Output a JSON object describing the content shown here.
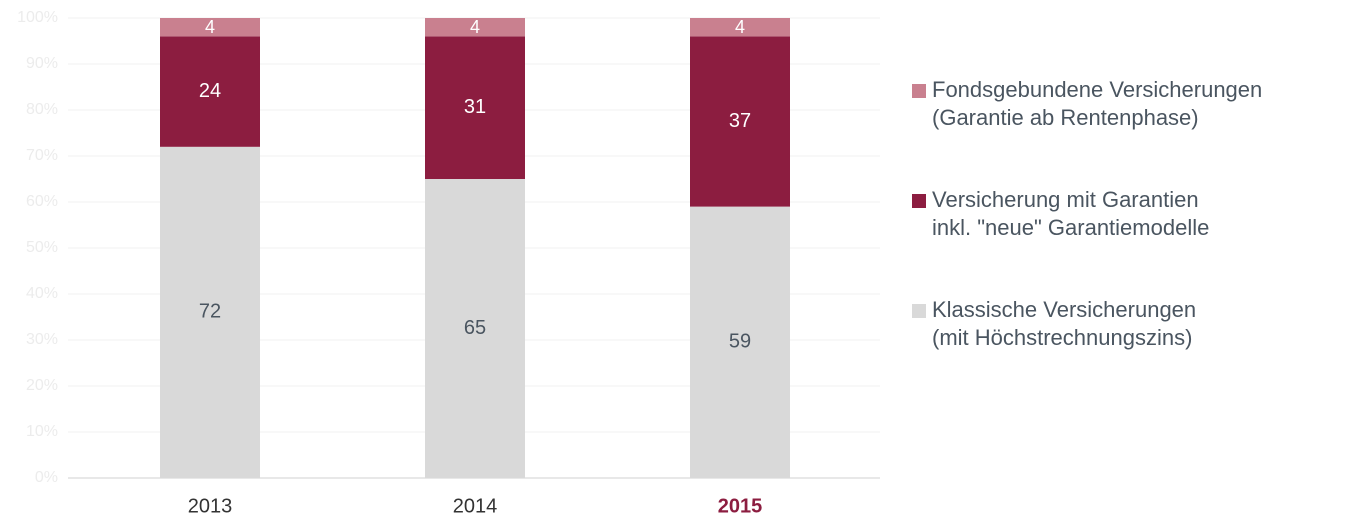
{
  "chart_data": {
    "type": "stacked_bar",
    "categories": [
      "2013",
      "2014",
      "2015"
    ],
    "highlight_index": 2,
    "series": [
      {
        "name": "Klassische Versicherungen\n(mit Höchstrechnungszins)",
        "color": "#d9d9d9",
        "values": [
          72,
          65,
          59
        ]
      },
      {
        "name": "Versicherung mit Garantien\ninkl. \"neue\" Garantiemodelle",
        "color": "#8c1d40",
        "values": [
          24,
          31,
          37
        ]
      },
      {
        "name": "Fondsgebundene Versicherungen\n(Garantie ab Rentenphase)",
        "color": "#c9808f",
        "values": [
          4,
          4,
          4
        ]
      }
    ],
    "ylim": [
      0,
      100
    ],
    "yticks": [
      {
        "value": 0,
        "label": "0%"
      },
      {
        "value": 10,
        "label": "10%"
      },
      {
        "value": 20,
        "label": "20%"
      },
      {
        "value": 30,
        "label": "30%"
      },
      {
        "value": 40,
        "label": "40%"
      },
      {
        "value": 50,
        "label": "50%"
      },
      {
        "value": 60,
        "label": "60%"
      },
      {
        "value": 70,
        "label": "70%"
      },
      {
        "value": 80,
        "label": "80%"
      },
      {
        "value": 90,
        "label": "90%"
      },
      {
        "value": 100,
        "label": "100%"
      }
    ],
    "grid": true
  }
}
